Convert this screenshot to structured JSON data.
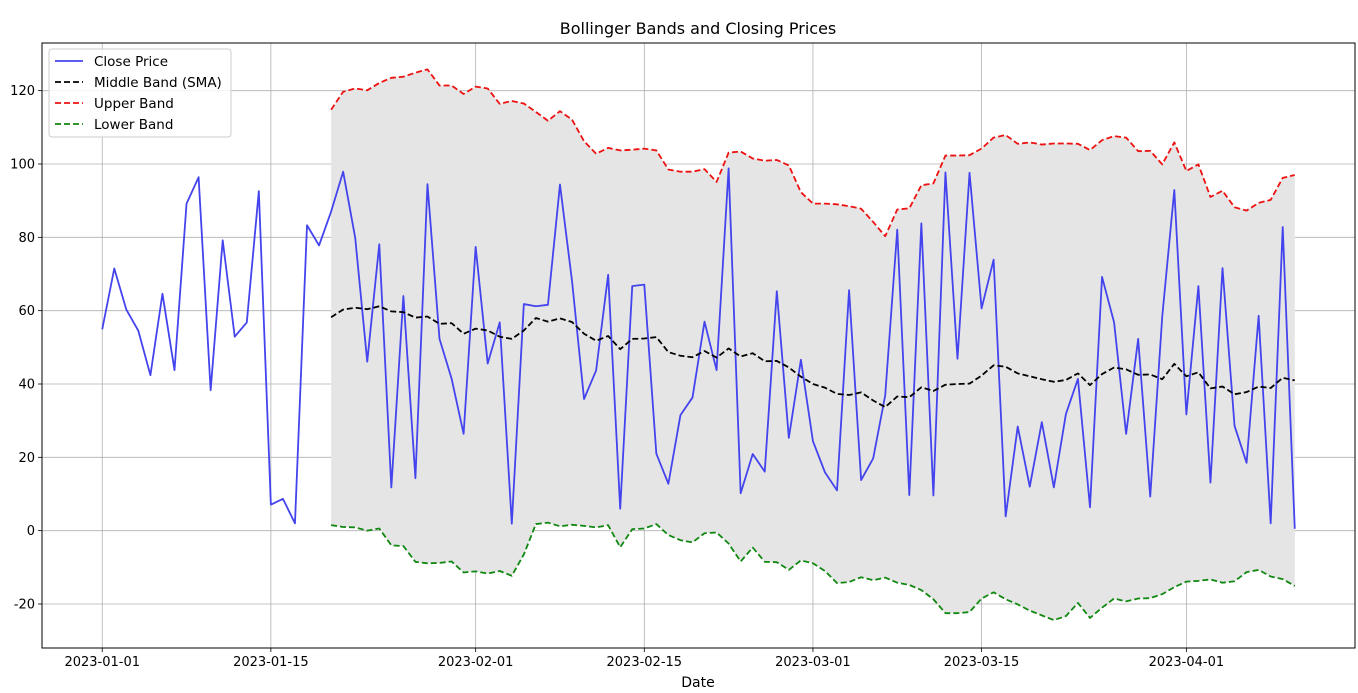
{
  "chart_data": {
    "type": "line",
    "title": "Bollinger Bands and Closing Prices",
    "xlabel": "Date",
    "ylabel": "",
    "grid": true,
    "legend_position": "top-left",
    "xlim": [
      "2022-12-27",
      "2023-04-15"
    ],
    "ylim": [
      -32,
      133
    ],
    "x_ticks": [
      "2023-01-01",
      "2023-01-15",
      "2023-02-01",
      "2023-02-15",
      "2023-03-01",
      "2023-03-15",
      "2023-04-01"
    ],
    "y_ticks": [
      -20,
      0,
      20,
      40,
      60,
      80,
      100,
      120
    ],
    "start_date": "2023-01-01",
    "band_fill_color": "#e5e5e5",
    "series": [
      {
        "name": "Close Price",
        "color": "#4444ee",
        "style": "solid",
        "start_date": "2023-01-01",
        "values": [
          54.9,
          71.5,
          60.3,
          54.5,
          42.4,
          64.6,
          43.8,
          89.2,
          96.4,
          38.3,
          79.2,
          52.9,
          56.8,
          92.6,
          7.1,
          8.7,
          2.0,
          83.3,
          77.8,
          87.0,
          97.9,
          79.9,
          46.1,
          78.1,
          11.8,
          64.0,
          14.3,
          94.5,
          52.3,
          41.5,
          26.4,
          77.4,
          45.6,
          56.8,
          1.9,
          61.8,
          61.2,
          61.6,
          94.4,
          68.1,
          35.9,
          43.7,
          69.8,
          6.0,
          66.7,
          67.1,
          21.0,
          12.8,
          31.5,
          36.3,
          57.0,
          43.8,
          98.8,
          10.2,
          20.9,
          16.1,
          65.3,
          25.3,
          46.6,
          24.4,
          15.9,
          11.0,
          65.6,
          13.8,
          19.7,
          36.9,
          82.1,
          9.7,
          83.8,
          9.6,
          97.7,
          46.9,
          97.6,
          60.6,
          73.9,
          3.9,
          28.4,
          12.0,
          29.6,
          11.8,
          31.8,
          41.4,
          6.4,
          69.2,
          56.8,
          26.4,
          52.3,
          9.3,
          58.5,
          92.9,
          31.7,
          66.7,
          13.1,
          71.6,
          28.6,
          18.5,
          58.6,
          2.0,
          82.8,
          0.5
        ]
      },
      {
        "name": "Middle Band (SMA)",
        "color": "#000000",
        "style": "dashed",
        "start_date": "2023-01-20",
        "values": [
          58.2,
          60.3,
          60.8,
          60.4,
          61.2,
          59.8,
          59.6,
          58.1,
          58.4,
          56.4,
          56.6,
          53.7,
          55.1,
          54.6,
          52.9,
          52.3,
          54.6,
          58.0,
          57.0,
          57.9,
          56.9,
          53.7,
          51.8,
          53.1,
          49.5,
          52.3,
          52.4,
          52.8,
          48.7,
          47.7,
          47.3,
          49.0,
          47.2,
          49.7,
          47.5,
          48.4,
          46.2,
          46.3,
          44.5,
          42.0,
          40.0,
          39.0,
          37.3,
          37.0,
          37.7,
          35.5,
          33.7,
          36.6,
          36.4,
          39.1,
          38.1,
          39.8,
          40.0,
          40.1,
          42.3,
          45.1,
          44.7,
          42.9,
          42.1,
          41.3,
          40.6,
          41.1,
          42.9,
          39.7,
          42.7,
          44.5,
          44.0,
          42.5,
          42.6,
          41.3,
          45.5,
          42.1,
          43.2,
          38.8,
          39.3,
          37.2,
          37.8,
          39.3,
          38.9,
          41.7,
          41.0
        ]
      },
      {
        "name": "Upper Band",
        "color": "#ee1111",
        "style": "dashed",
        "start_date": "2023-01-20",
        "values": [
          114.8,
          119.7,
          120.6,
          120.1,
          122.1,
          123.5,
          123.8,
          124.9,
          125.8,
          121.4,
          121.4,
          119.1,
          121.1,
          120.6,
          116.4,
          117.2,
          116.5,
          114.2,
          111.8,
          114.4,
          112.1,
          106.2,
          102.8,
          104.4,
          103.7,
          103.9,
          104.2,
          103.7,
          98.5,
          97.9,
          97.9,
          98.6,
          95.1,
          103.1,
          103.4,
          101.5,
          100.9,
          101.1,
          99.6,
          92.3,
          89.2,
          89.2,
          89.0,
          88.5,
          87.8,
          84.2,
          80.3,
          87.6,
          87.9,
          94.2,
          94.7,
          102.3,
          102.3,
          102.4,
          104.2,
          107.2,
          107.9,
          105.5,
          105.9,
          105.3,
          105.6,
          105.6,
          105.5,
          103.8,
          106.5,
          107.6,
          107.2,
          103.5,
          103.6,
          99.9,
          105.9,
          98.1,
          99.9,
          91.0,
          92.7,
          88.2,
          87.3,
          89.4,
          90.2,
          96.2,
          97.0
        ]
      },
      {
        "name": "Lower Band",
        "color": "#118811",
        "style": "dashed",
        "start_date": "2023-01-20",
        "values": [
          1.5,
          1.0,
          0.9,
          0.0,
          0.6,
          -4.0,
          -4.2,
          -8.5,
          -8.9,
          -8.8,
          -8.4,
          -11.4,
          -11.1,
          -11.7,
          -11.0,
          -12.3,
          -6.5,
          1.8,
          2.2,
          1.2,
          1.6,
          1.3,
          0.9,
          1.5,
          -4.5,
          0.4,
          0.6,
          1.8,
          -1.2,
          -2.6,
          -3.2,
          -0.7,
          -0.5,
          -3.5,
          -8.4,
          -4.6,
          -8.5,
          -8.6,
          -10.7,
          -8.1,
          -8.9,
          -11.0,
          -14.3,
          -14.0,
          -12.7,
          -13.5,
          -12.8,
          -14.2,
          -14.8,
          -16.2,
          -18.7,
          -22.5,
          -22.5,
          -22.2,
          -18.5,
          -16.8,
          -18.7,
          -20.1,
          -21.8,
          -23.1,
          -24.4,
          -23.3,
          -19.7,
          -23.8,
          -21.0,
          -18.5,
          -19.3,
          -18.5,
          -18.4,
          -17.3,
          -15.4,
          -13.9,
          -13.7,
          -13.3,
          -14.2,
          -13.8,
          -11.3,
          -10.7,
          -12.5,
          -13.2,
          -15.1
        ]
      }
    ]
  }
}
